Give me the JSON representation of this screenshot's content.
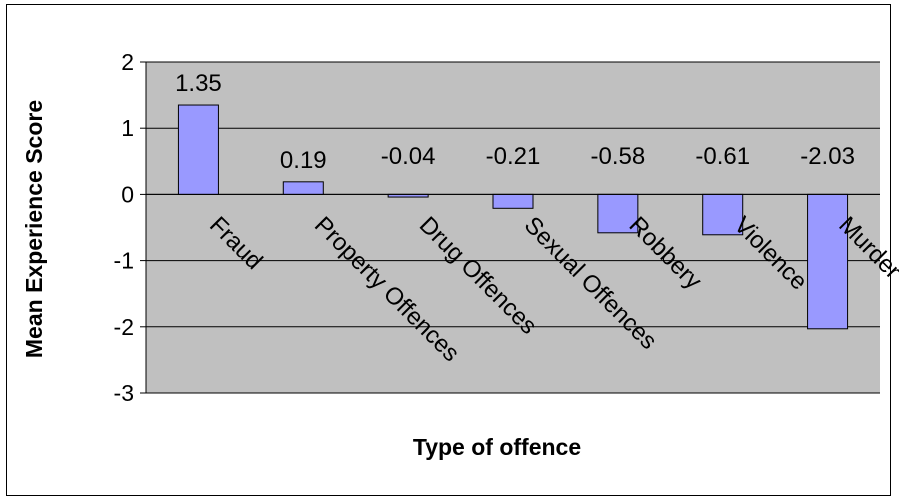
{
  "chart_data": {
    "type": "bar",
    "title": "",
    "xlabel": "Type of offence",
    "ylabel": "Mean Experience Score",
    "categories": [
      "Fraud",
      "Property Offences",
      "Drug Offences",
      "Sexual Offences",
      "Robbery",
      "Violence",
      "Murder"
    ],
    "values": [
      1.35,
      0.19,
      -0.04,
      -0.21,
      -0.58,
      -0.61,
      -2.03
    ],
    "data_labels": [
      "1.35",
      "0.19",
      "-0.04",
      "-0.21",
      "-0.58",
      "-0.61",
      "-2.03"
    ],
    "ylim": [
      -3,
      2
    ],
    "yticks": [
      "2",
      "1",
      "0",
      "-1",
      "-2",
      "-3"
    ],
    "grid": true,
    "legend": "none",
    "colors": {
      "plot_background": "#c0c0c0",
      "bar_fill": "#9999ff",
      "bar_stroke": "#000000",
      "gridline": "#000000"
    }
  }
}
